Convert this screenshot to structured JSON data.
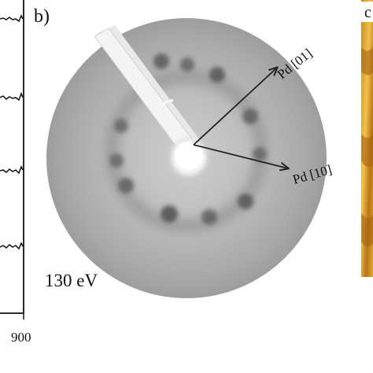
{
  "figure": {
    "left_panel": {
      "axis_tick_label": "900"
    },
    "panel_b": {
      "label": "b)",
      "energy": "130 eV",
      "arrow_01_label": "Pd [01]",
      "arrow_10_label": "Pd [10]"
    },
    "right_panel": {
      "label_fragment": "c"
    }
  }
}
